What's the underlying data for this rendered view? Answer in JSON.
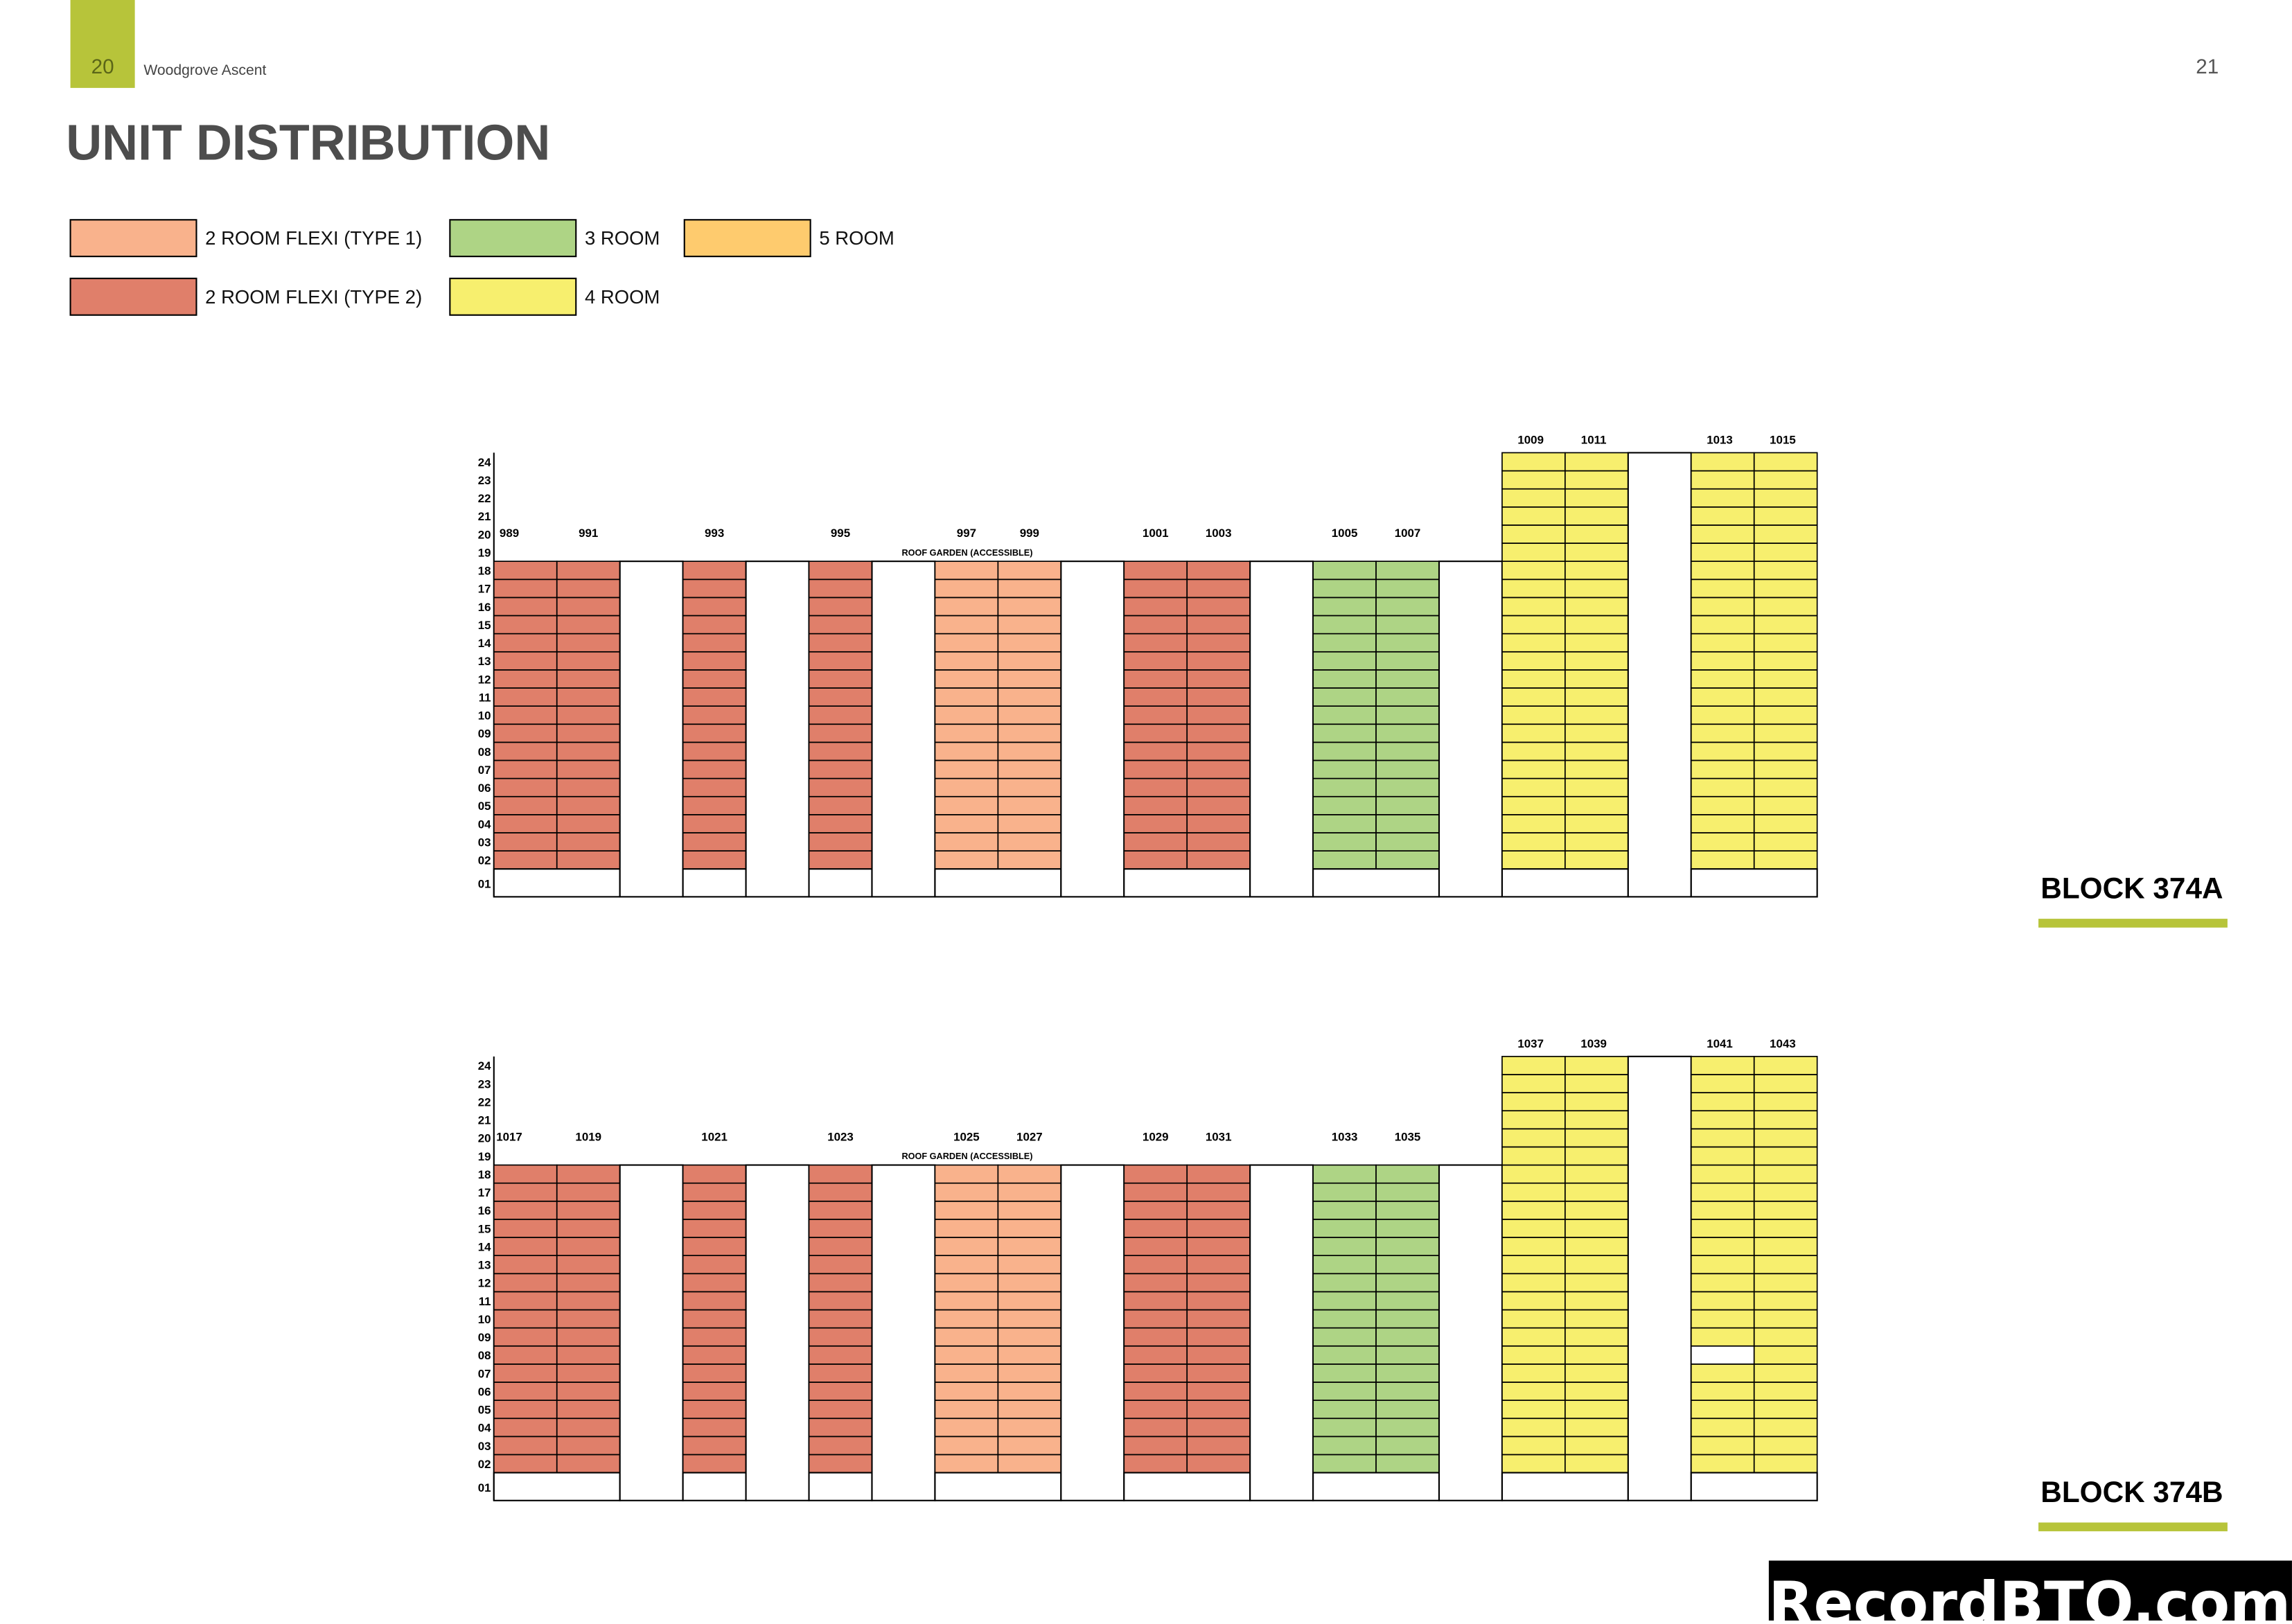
{
  "header": {
    "left_page": "20",
    "subtitle": "Woodgrove Ascent",
    "right_page": "21"
  },
  "title": "UNIT DISTRIBUTION",
  "legend": [
    {
      "label": "2  ROOM FLEXI (TYPE 1)",
      "color": "#f9b28c"
    },
    {
      "label": "2  ROOM FLEXI (TYPE 2)",
      "color": "#e07f6a"
    },
    {
      "label": "3 ROOM",
      "color": "#aed485"
    },
    {
      "label": "4 ROOM",
      "color": "#f7ef6e"
    },
    {
      "label": "5 ROOM",
      "color": "#fecb6e"
    }
  ],
  "floors": [
    "24",
    "23",
    "22",
    "21",
    "20",
    "19",
    "18",
    "17",
    "16",
    "15",
    "14",
    "13",
    "12",
    "11",
    "10",
    "09",
    "08",
    "07",
    "06",
    "05",
    "04",
    "03",
    "02",
    "01"
  ],
  "roof_garden": "ROOF GARDEN (ACCESSIBLE)",
  "blocks": [
    {
      "name": "BLOCK 374A",
      "groups": [
        {
          "storeys": 18,
          "units": [
            {
              "label": "989",
              "type": 1
            },
            {
              "label": "991",
              "type": 1
            }
          ]
        },
        {
          "storeys": 18,
          "units": [
            {
              "label": "993",
              "type": 1
            }
          ]
        },
        {
          "storeys": 18,
          "units": [
            {
              "label": "995",
              "type": 1
            }
          ]
        },
        {
          "storeys": 18,
          "units": [
            {
              "label": "997",
              "type": 0
            },
            {
              "label": "999",
              "type": 0
            }
          ]
        },
        {
          "storeys": 18,
          "units": [
            {
              "label": "1001",
              "type": 1
            },
            {
              "label": "1003",
              "type": 1
            }
          ]
        },
        {
          "storeys": 18,
          "units": [
            {
              "label": "1005",
              "type": 2
            },
            {
              "label": "1007",
              "type": 2
            }
          ]
        },
        {
          "storeys": 24,
          "units": [
            {
              "label": "1009",
              "type": 3
            },
            {
              "label": "1011",
              "type": 3
            }
          ]
        },
        {
          "storeys": 24,
          "units": [
            {
              "label": "1013",
              "type": 3
            },
            {
              "label": "1015",
              "type": 3
            }
          ]
        }
      ]
    },
    {
      "name": "BLOCK 374B",
      "groups": [
        {
          "storeys": 18,
          "units": [
            {
              "label": "1017",
              "type": 1
            },
            {
              "label": "1019",
              "type": 1
            }
          ]
        },
        {
          "storeys": 18,
          "units": [
            {
              "label": "1021",
              "type": 1
            }
          ]
        },
        {
          "storeys": 18,
          "units": [
            {
              "label": "1023",
              "type": 1
            }
          ]
        },
        {
          "storeys": 18,
          "units": [
            {
              "label": "1025",
              "type": 0
            },
            {
              "label": "1027",
              "type": 0
            }
          ]
        },
        {
          "storeys": 18,
          "units": [
            {
              "label": "1029",
              "type": 1
            },
            {
              "label": "1031",
              "type": 1
            }
          ]
        },
        {
          "storeys": 18,
          "units": [
            {
              "label": "1033",
              "type": 2
            },
            {
              "label": "1035",
              "type": 2
            }
          ]
        },
        {
          "storeys": 24,
          "units": [
            {
              "label": "1037",
              "type": 3
            },
            {
              "label": "1039",
              "type": 3
            }
          ]
        },
        {
          "storeys": 24,
          "units": [
            {
              "label": "1041",
              "type": 3,
              "blank_floors": [
                "08"
              ]
            },
            {
              "label": "1043",
              "type": 3
            }
          ]
        }
      ]
    }
  ],
  "watermark": "RecordBTO.com"
}
